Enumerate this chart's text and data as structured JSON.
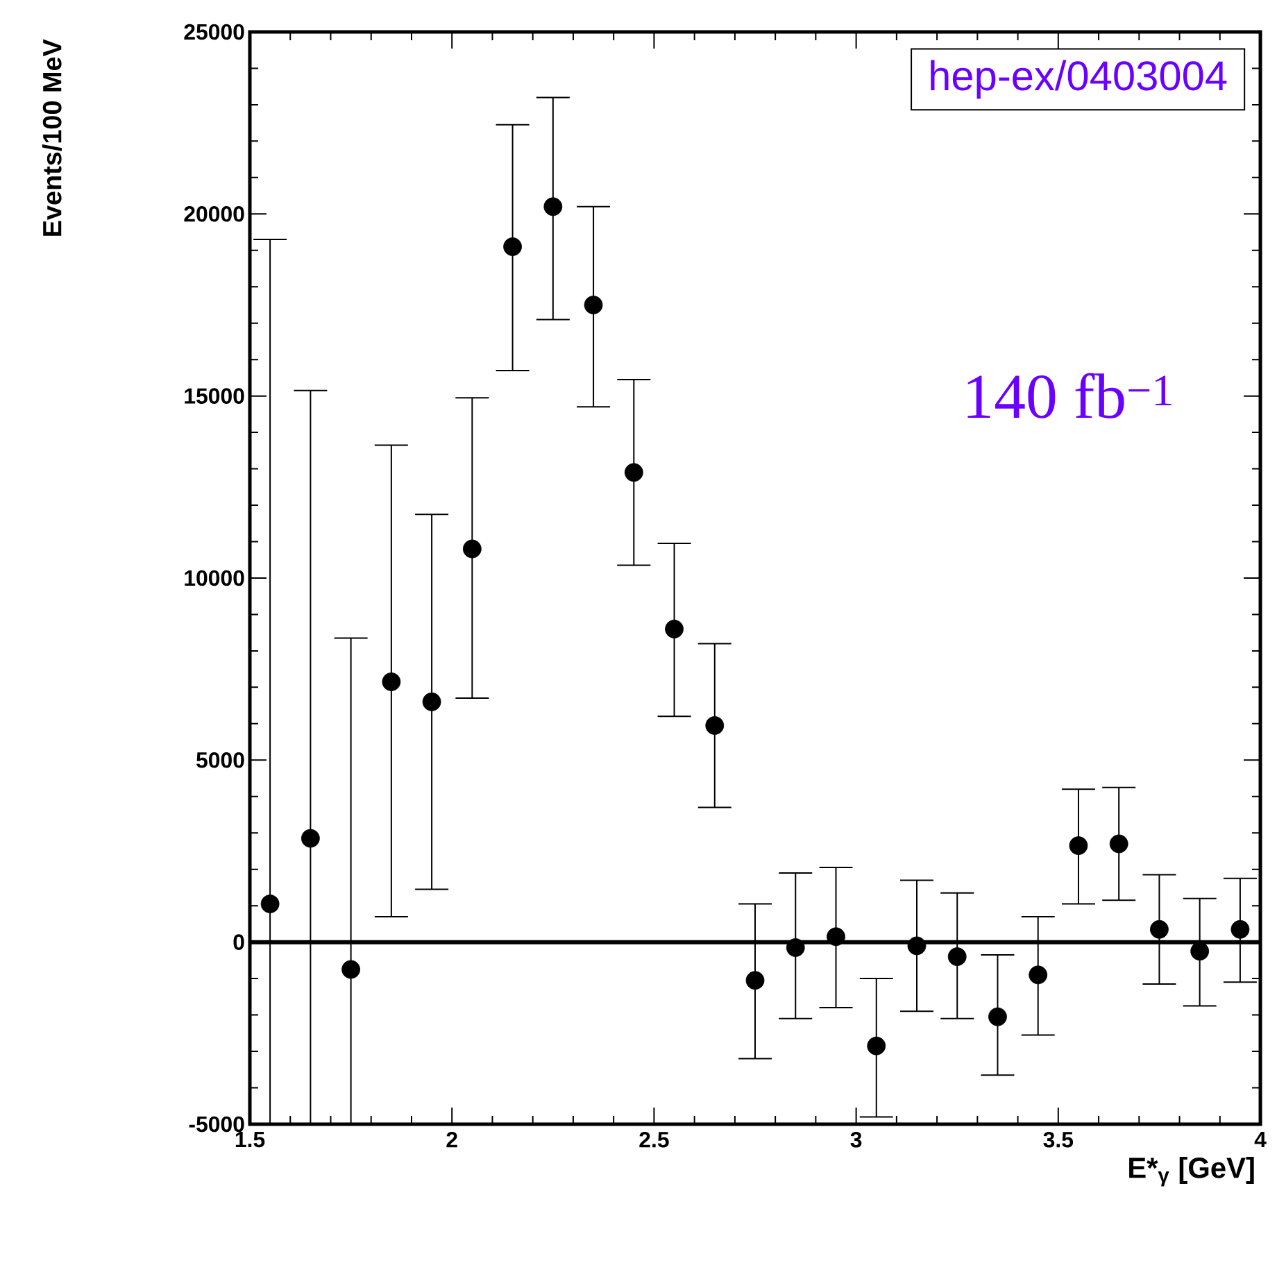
{
  "chart_data": {
    "type": "scatter",
    "xlabel": "E*$_{γ}$ [GeV]",
    "ylabel": "Events/100 MeV",
    "x": [
      1.55,
      1.65,
      1.75,
      1.85,
      1.95,
      2.05,
      2.15,
      2.25,
      2.35,
      2.45,
      2.55,
      2.65,
      2.75,
      2.85,
      2.95,
      3.05,
      3.15,
      3.25,
      3.35,
      3.45,
      3.55,
      3.65,
      3.75,
      3.85,
      3.95
    ],
    "values": [
      1050,
      2850,
      -750,
      7150,
      6600,
      10800,
      19100,
      20200,
      17500,
      12900,
      8600,
      5950,
      -1050,
      -150,
      150,
      -2850,
      -100,
      -400,
      -2050,
      -900,
      2650,
      2700,
      350,
      -250,
      350
    ],
    "errors": [
      [
        -5000,
        19300
      ],
      [
        -5000,
        15150
      ],
      [
        -5000,
        8350
      ],
      [
        700,
        13650
      ],
      [
        1450,
        11750
      ],
      [
        6700,
        14950
      ],
      [
        15700,
        22450
      ],
      [
        17100,
        23200
      ],
      [
        14700,
        20200
      ],
      [
        10350,
        15450
      ],
      [
        6200,
        10950
      ],
      [
        3700,
        8200
      ],
      [
        -3200,
        1050
      ],
      [
        -2100,
        1900
      ],
      [
        -1800,
        2050
      ],
      [
        -4800,
        -1000
      ],
      [
        -1900,
        1700
      ],
      [
        -2100,
        1350
      ],
      [
        -3650,
        -350
      ],
      [
        -2550,
        700
      ],
      [
        1050,
        4200
      ],
      [
        1150,
        4250
      ],
      [
        -1150,
        1850
      ],
      [
        -1750,
        1200
      ],
      [
        -1100,
        1750
      ]
    ],
    "color": "#000000",
    "marker": "circle",
    "xlim": [
      1.5,
      4
    ],
    "ylim": [
      -5000,
      25000
    ],
    "xticks": [
      1.5,
      2,
      2.5,
      3,
      3.5,
      4
    ],
    "yticks": [
      -5000,
      0,
      5000,
      10000,
      15000,
      20000,
      25000
    ],
    "ref_lines": [
      {
        "axis": "y",
        "value": 0,
        "color": "#000000"
      }
    ],
    "annotations": [
      "hep-ex/0403004",
      "140 fb$^{−1}$"
    ]
  }
}
